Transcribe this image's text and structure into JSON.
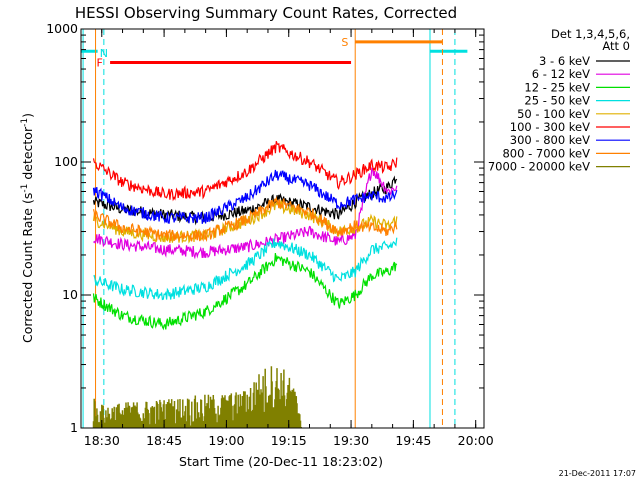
{
  "chart_data": {
    "type": "line",
    "title": "HESSI Observing Summary Count Rates, Corrected",
    "xlabel": "Start Time (20-Dec-11 18:23:02)",
    "ylabel": "Corrected Count Rate (s",
    "ylabel_sup1": "-1",
    "ylabel_mid": " detector",
    "ylabel_sup2": "-1",
    "ylabel_end": ")",
    "y_scale": "log",
    "ylim": [
      1,
      1000
    ],
    "xlim": [
      "18:25:00",
      "20:02:00"
    ],
    "x_ticks": [
      "18:30",
      "18:45",
      "19:00",
      "19:15",
      "19:30",
      "19:45",
      "20:00"
    ],
    "y_ticks": [
      1,
      10,
      100,
      1000
    ],
    "y_tick_labels": [
      "1",
      "10",
      "100",
      "1000"
    ],
    "legend": {
      "header": [
        "Det 1,3,4,5,6,",
        "Att 0"
      ],
      "position": "right"
    },
    "series": [
      {
        "name": "3 - 6 keV",
        "color": "#000000",
        "times": [
          "18:28",
          "18:35",
          "18:45",
          "18:55",
          "19:05",
          "19:12",
          "19:20",
          "19:27",
          "19:31",
          "19:35",
          "19:39",
          "19:41"
        ],
        "values": [
          50,
          44,
          40,
          38,
          43,
          52,
          46,
          40,
          50,
          58,
          65,
          78
        ]
      },
      {
        "name": "6 - 12 keV",
        "color": "#e000e0",
        "times": [
          "18:28",
          "18:35",
          "18:45",
          "18:55",
          "19:05",
          "19:12",
          "19:20",
          "19:27",
          "19:31",
          "19:35",
          "19:39",
          "19:41"
        ],
        "values": [
          27,
          24,
          22,
          21,
          23,
          26,
          30,
          25,
          28,
          90,
          60,
          65
        ]
      },
      {
        "name": "12 - 25 keV",
        "color": "#00e000",
        "times": [
          "18:28",
          "18:35",
          "18:45",
          "18:55",
          "19:05",
          "19:12",
          "19:20",
          "19:27",
          "19:31",
          "19:35",
          "19:39",
          "19:41"
        ],
        "values": [
          9.5,
          7.0,
          6.0,
          7.5,
          12,
          19,
          15,
          8.5,
          10,
          14,
          15,
          17
        ]
      },
      {
        "name": "25 - 50 keV",
        "color": "#00e0e0",
        "times": [
          "18:28",
          "18:35",
          "18:45",
          "18:55",
          "19:05",
          "19:12",
          "19:20",
          "19:27",
          "19:31",
          "19:35",
          "19:39",
          "19:41"
        ],
        "values": [
          13,
          11,
          10,
          11.5,
          17,
          25,
          20,
          13,
          15,
          22,
          23,
          25
        ]
      },
      {
        "name": "50 - 100 keV",
        "color": "#e0b000",
        "times": [
          "18:28",
          "18:35",
          "18:45",
          "18:55",
          "19:05",
          "19:12",
          "19:20",
          "19:27",
          "19:31",
          "19:35",
          "19:39",
          "19:41"
        ],
        "values": [
          37,
          30,
          27,
          28,
          36,
          47,
          40,
          30,
          32,
          36,
          33,
          37
        ]
      },
      {
        "name": "100 - 300 keV",
        "color": "#ff0000",
        "times": [
          "18:28",
          "18:35",
          "18:45",
          "18:55",
          "19:05",
          "19:12",
          "19:20",
          "19:27",
          "19:31",
          "19:35",
          "19:39",
          "19:41"
        ],
        "values": [
          100,
          70,
          57,
          60,
          85,
          130,
          100,
          70,
          80,
          95,
          90,
          100
        ]
      },
      {
        "name": "300 - 800 keV",
        "color": "#0000ff",
        "times": [
          "18:28",
          "18:35",
          "18:45",
          "18:55",
          "19:05",
          "19:12",
          "19:20",
          "19:27",
          "19:31",
          "19:35",
          "19:39",
          "19:41"
        ],
        "values": [
          62,
          45,
          38,
          38,
          54,
          80,
          67,
          48,
          52,
          56,
          53,
          58
        ]
      },
      {
        "name": "800 - 7000 keV",
        "color": "#ff8000",
        "times": [
          "18:28",
          "18:35",
          "18:45",
          "18:55",
          "19:05",
          "19:12",
          "19:20",
          "19:27",
          "19:31",
          "19:35",
          "19:39",
          "19:41"
        ],
        "values": [
          40,
          32,
          28,
          28,
          37,
          50,
          42,
          30,
          33,
          32,
          30,
          34
        ]
      },
      {
        "name": "7000 - 20000 keV",
        "color": "#808000",
        "times": [
          "18:28",
          "18:29",
          "19:04",
          "19:07",
          "19:10",
          "19:12",
          "19:14",
          "19:16",
          "19:18"
        ],
        "values": [
          1.8,
          1.5,
          1.9,
          2.5,
          3.0,
          3.1,
          2.8,
          2.2,
          1.5
        ]
      }
    ],
    "flags": [
      {
        "label": "N",
        "color": "#00e0e0",
        "bar_start": "18:25:00",
        "bar_end": "18:29:00",
        "bar_level": 680,
        "label_time": "18:30:30",
        "label_level": 660,
        "dashed_lines": [
          "18:30:30",
          "19:55:00"
        ],
        "solid_lines": [
          "18:25:30",
          "19:49:00"
        ],
        "bar2_start": "19:49:00",
        "bar2_end": "19:58:00"
      },
      {
        "label": "F",
        "color": "#ff0000",
        "bar_start": "18:32:00",
        "bar_end": "19:30:00",
        "bar_level": 560,
        "label_time": "18:29:30",
        "label_level": 560
      },
      {
        "label": "S",
        "color": "#ff8000",
        "bar_start": "19:31:00",
        "bar_end": "19:52:00",
        "bar_level": 800,
        "label_time": "19:28:30",
        "label_level": 800,
        "solid_lines": [
          "18:28:30",
          "19:31:00"
        ],
        "dashed_lines": [
          "19:52:00"
        ]
      }
    ],
    "grid": false
  },
  "timestamp": "21-Dec-2011 17:07"
}
